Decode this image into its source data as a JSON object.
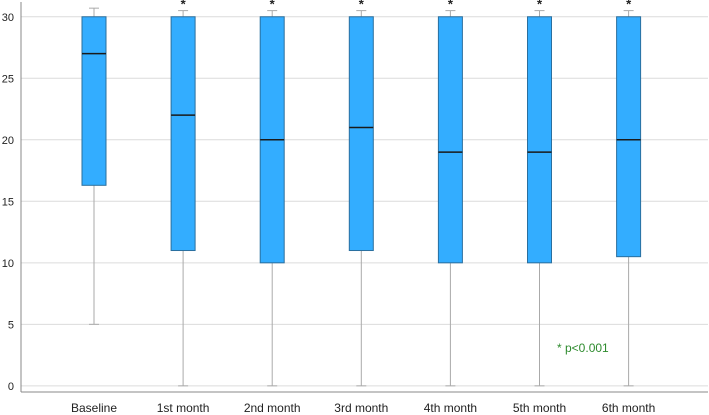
{
  "chart_data": {
    "type": "boxplot",
    "categories": [
      "Baseline",
      "1st month",
      "2nd month",
      "3rd month",
      "4th month",
      "5th month",
      "6th month"
    ],
    "boxes": [
      {
        "min": 5,
        "q1": 16.3,
        "median": 27,
        "q3": 30,
        "max": 30.7,
        "marker": ""
      },
      {
        "min": 0,
        "q1": 11,
        "median": 22,
        "q3": 30,
        "max": 30.5,
        "marker": "*"
      },
      {
        "min": 0,
        "q1": 10,
        "median": 20,
        "q3": 30,
        "max": 30.5,
        "marker": "*"
      },
      {
        "min": 0,
        "q1": 11,
        "median": 21,
        "q3": 30,
        "max": 30.5,
        "marker": "*"
      },
      {
        "min": 0,
        "q1": 10,
        "median": 19,
        "q3": 30,
        "max": 30.5,
        "marker": "*"
      },
      {
        "min": 0,
        "q1": 10,
        "median": 19,
        "q3": 30,
        "max": 30.5,
        "marker": "*"
      },
      {
        "min": 0,
        "q1": 10.5,
        "median": 20,
        "q3": 30,
        "max": 30.5,
        "marker": "*"
      }
    ],
    "y_ticks": [
      "0",
      "5",
      "10",
      "15",
      "20",
      "25",
      "30"
    ],
    "ylim": [
      -0.5,
      31.2
    ],
    "grid": true,
    "annotation": "* p<0.001",
    "colors": {
      "box_fill": "#33adff",
      "box_stroke": "#2a6f9e",
      "median": "#1a1a1a",
      "whisker": "#aaaaaa",
      "grid": "#dcdcdc",
      "axis": "#888888",
      "annotation": "#2e8b2e"
    }
  }
}
